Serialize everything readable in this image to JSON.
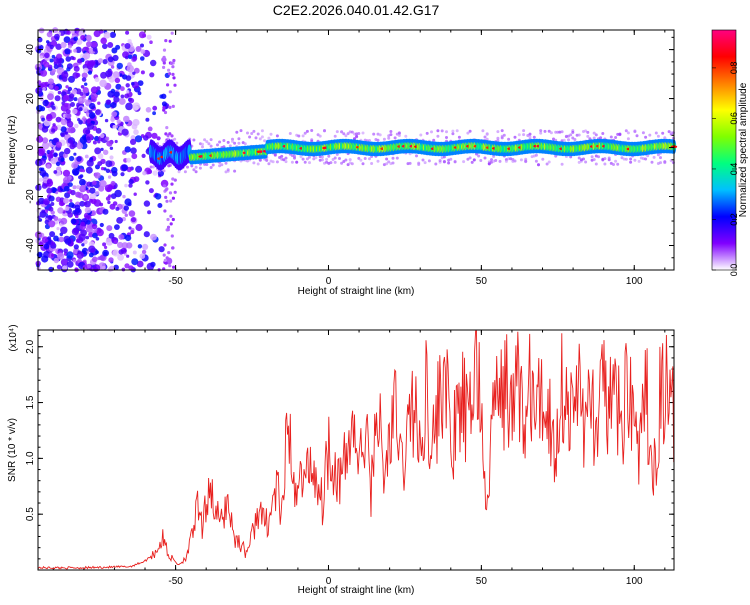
{
  "title": "C2E2.2026.040.01.42.G17",
  "chart_data": [
    {
      "type": "heatmap",
      "xlabel": "Height of straight line (km)",
      "ylabel": "Frequency (Hz)",
      "xlim": [
        -95,
        113
      ],
      "ylim": [
        -50,
        48
      ],
      "xticks": [
        -50,
        0,
        50,
        100
      ],
      "yticks": [
        -40,
        -20,
        0,
        20,
        40
      ],
      "colorbar": {
        "label": "Normalized spectral amplitude",
        "range": [
          0,
          0.95
        ],
        "ticks": [
          "0.0",
          "0.2",
          "0.4",
          "0.6",
          "0.8"
        ],
        "tick_values": [
          0,
          0.2,
          0.4,
          0.6,
          0.8
        ],
        "colormap": [
          "#ffffff",
          "#8000ff",
          "#0000ff",
          "#00c0ff",
          "#00ff80",
          "#80ff00",
          "#ffff00",
          "#ff8000",
          "#ff0000",
          "#ff0080"
        ]
      },
      "features": [
        {
          "name": "broadband noise region",
          "x_range": [
            -95,
            -58
          ],
          "freq_range": [
            -50,
            48
          ],
          "amplitude": 0.15
        },
        {
          "name": "signal band",
          "x_range": [
            -58,
            113
          ],
          "center_freq": 0,
          "half_width_hz": 3,
          "amplitude": 0.6
        }
      ]
    },
    {
      "type": "line",
      "xlabel": "Height of straight line (km)",
      "ylabel": "SNR (10 * v/v)",
      "y_multiplier": "(x10⁴)",
      "xlim": [
        -95,
        113
      ],
      "ylim": [
        0,
        2.15
      ],
      "xticks": [
        -50,
        0,
        50,
        100
      ],
      "yticks": [
        0.5,
        1.0,
        1.5,
        2.0
      ],
      "series": [
        {
          "color": "#e8201e",
          "x": [
            -95,
            -80,
            -65,
            -60,
            -57,
            -54,
            -52,
            -49,
            -47,
            -45,
            -43,
            -41,
            -39,
            -37,
            -35,
            -33,
            -31,
            -29,
            -27,
            -25,
            -23,
            -21,
            -19,
            -17,
            -15,
            -13,
            -12,
            -10,
            -8,
            -6,
            -4,
            -2,
            0,
            2,
            4,
            6,
            8,
            10,
            12,
            14,
            16,
            18,
            20,
            22,
            24,
            26,
            28,
            30,
            32,
            34,
            36,
            38,
            40,
            42,
            44,
            46,
            48,
            50,
            52,
            54,
            56,
            58,
            60,
            62,
            64,
            66,
            68,
            70,
            72,
            74,
            76,
            78,
            80,
            82,
            84,
            86,
            88,
            90,
            92,
            94,
            96,
            98,
            100,
            102,
            104,
            106,
            108,
            110,
            113
          ],
          "values": [
            0.02,
            0.02,
            0.03,
            0.08,
            0.15,
            0.28,
            0.12,
            0.05,
            0.1,
            0.25,
            0.55,
            0.35,
            0.85,
            0.5,
            0.42,
            0.65,
            0.3,
            0.25,
            0.15,
            0.3,
            0.55,
            0.4,
            0.5,
            0.75,
            0.45,
            1.55,
            0.6,
            0.9,
            0.75,
            1.0,
            0.85,
            0.6,
            1.15,
            0.95,
            0.8,
            1.0,
            1.35,
            0.9,
            1.25,
            0.7,
            1.6,
            0.75,
            1.2,
            1.4,
            0.9,
            1.25,
            1.55,
            0.95,
            1.7,
            1.1,
            1.45,
            1.9,
            1.05,
            1.3,
            1.5,
            1.2,
            2.1,
            1.35,
            0.5,
            1.6,
            1.4,
            1.75,
            1.3,
            1.85,
            1.2,
            1.65,
            1.35,
            1.55,
            1.45,
            1.0,
            1.7,
            1.5,
            1.3,
            1.8,
            1.2,
            1.6,
            1.1,
            1.75,
            1.4,
            1.55,
            1.2,
            1.85,
            1.3,
            1.05,
            1.6,
            0.65,
            1.45,
            1.7,
            1.3
          ]
        }
      ]
    }
  ]
}
